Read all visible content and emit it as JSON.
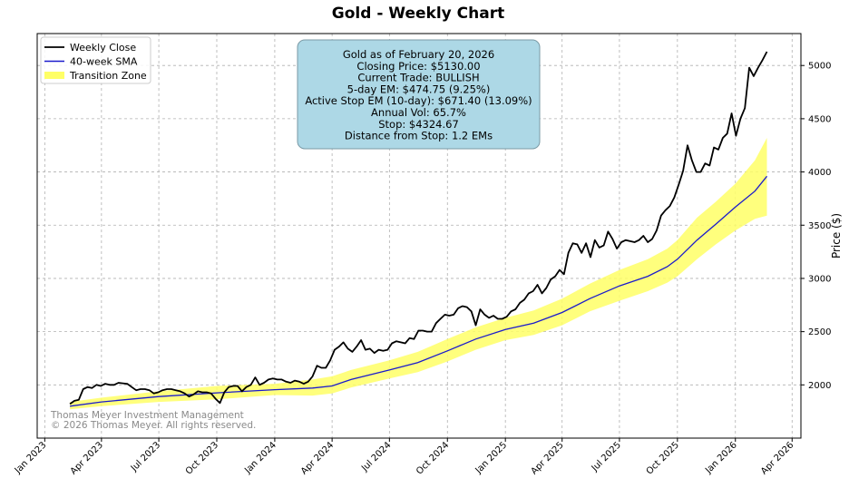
{
  "chart_data": {
    "type": "line",
    "title": "Gold - Weekly Chart",
    "ylabel": "Price ($)",
    "xlabel": "",
    "ylim": [
      1500,
      5300
    ],
    "yticks": [
      2000,
      2500,
      3000,
      3500,
      4000,
      4500,
      5000
    ],
    "xlim": [
      "2022-12-20",
      "2026-04-15"
    ],
    "xticks": [
      {
        "date": "2023-01-01",
        "label": "Jan 2023"
      },
      {
        "date": "2023-04-01",
        "label": "Apr 2023"
      },
      {
        "date": "2023-07-01",
        "label": "Jul 2023"
      },
      {
        "date": "2023-10-01",
        "label": "Oct 2023"
      },
      {
        "date": "2024-01-01",
        "label": "Jan 2024"
      },
      {
        "date": "2024-04-01",
        "label": "Apr 2024"
      },
      {
        "date": "2024-07-01",
        "label": "Jul 2024"
      },
      {
        "date": "2024-10-01",
        "label": "Oct 2024"
      },
      {
        "date": "2025-01-01",
        "label": "Jan 2025"
      },
      {
        "date": "2025-04-01",
        "label": "Apr 2025"
      },
      {
        "date": "2025-07-01",
        "label": "Jul 2025"
      },
      {
        "date": "2025-10-01",
        "label": "Oct 2025"
      },
      {
        "date": "2026-01-01",
        "label": "Jan 2026"
      },
      {
        "date": "2026-04-01",
        "label": "Apr 2026"
      }
    ],
    "grid": true,
    "legend": {
      "position": "top-left",
      "entries": [
        {
          "name": "Weekly Close",
          "color": "#000000",
          "kind": "line"
        },
        {
          "name": "40-week SMA",
          "color": "#1a1acc",
          "kind": "line"
        },
        {
          "name": "Transition Zone",
          "color": "#ffff66",
          "kind": "patch"
        }
      ]
    },
    "series": [
      {
        "name": "Weekly Close",
        "color": "#000000",
        "points": [
          [
            "2023-02-10",
            1820
          ],
          [
            "2023-02-17",
            1850
          ],
          [
            "2023-02-24",
            1860
          ],
          [
            "2023-03-03",
            1960
          ],
          [
            "2023-03-10",
            1980
          ],
          [
            "2023-03-17",
            1970
          ],
          [
            "2023-03-24",
            2000
          ],
          [
            "2023-03-31",
            1990
          ],
          [
            "2023-04-07",
            2010
          ],
          [
            "2023-04-14",
            2000
          ],
          [
            "2023-04-21",
            2000
          ],
          [
            "2023-04-28",
            2020
          ],
          [
            "2023-05-05",
            2015
          ],
          [
            "2023-05-12",
            2010
          ],
          [
            "2023-05-19",
            1980
          ],
          [
            "2023-05-26",
            1950
          ],
          [
            "2023-06-02",
            1960
          ],
          [
            "2023-06-09",
            1960
          ],
          [
            "2023-06-16",
            1950
          ],
          [
            "2023-06-23",
            1920
          ],
          [
            "2023-06-30",
            1930
          ],
          [
            "2023-07-07",
            1950
          ],
          [
            "2023-07-14",
            1960
          ],
          [
            "2023-07-21",
            1960
          ],
          [
            "2023-07-28",
            1950
          ],
          [
            "2023-08-04",
            1940
          ],
          [
            "2023-08-11",
            1920
          ],
          [
            "2023-08-18",
            1890
          ],
          [
            "2023-08-25",
            1910
          ],
          [
            "2023-09-01",
            1940
          ],
          [
            "2023-09-08",
            1930
          ],
          [
            "2023-09-15",
            1930
          ],
          [
            "2023-09-22",
            1920
          ],
          [
            "2023-09-29",
            1870
          ],
          [
            "2023-10-06",
            1830
          ],
          [
            "2023-10-13",
            1930
          ],
          [
            "2023-10-20",
            1980
          ],
          [
            "2023-10-27",
            1990
          ],
          [
            "2023-11-03",
            1990
          ],
          [
            "2023-11-10",
            1940
          ],
          [
            "2023-11-17",
            1980
          ],
          [
            "2023-11-24",
            2000
          ],
          [
            "2023-12-01",
            2070
          ],
          [
            "2023-12-08",
            2000
          ],
          [
            "2023-12-15",
            2020
          ],
          [
            "2023-12-22",
            2050
          ],
          [
            "2023-12-29",
            2060
          ],
          [
            "2024-01-05",
            2050
          ],
          [
            "2024-01-12",
            2050
          ],
          [
            "2024-01-19",
            2030
          ],
          [
            "2024-01-26",
            2020
          ],
          [
            "2024-02-02",
            2040
          ],
          [
            "2024-02-09",
            2030
          ],
          [
            "2024-02-16",
            2010
          ],
          [
            "2024-02-23",
            2030
          ],
          [
            "2024-03-01",
            2080
          ],
          [
            "2024-03-08",
            2180
          ],
          [
            "2024-03-15",
            2160
          ],
          [
            "2024-03-22",
            2160
          ],
          [
            "2024-03-29",
            2230
          ],
          [
            "2024-04-05",
            2330
          ],
          [
            "2024-04-12",
            2360
          ],
          [
            "2024-04-19",
            2400
          ],
          [
            "2024-04-26",
            2340
          ],
          [
            "2024-05-03",
            2310
          ],
          [
            "2024-05-10",
            2360
          ],
          [
            "2024-05-17",
            2420
          ],
          [
            "2024-05-24",
            2330
          ],
          [
            "2024-05-31",
            2340
          ],
          [
            "2024-06-07",
            2300
          ],
          [
            "2024-06-14",
            2330
          ],
          [
            "2024-06-21",
            2320
          ],
          [
            "2024-06-28",
            2330
          ],
          [
            "2024-07-05",
            2390
          ],
          [
            "2024-07-12",
            2410
          ],
          [
            "2024-07-19",
            2400
          ],
          [
            "2024-07-26",
            2390
          ],
          [
            "2024-08-02",
            2440
          ],
          [
            "2024-08-09",
            2430
          ],
          [
            "2024-08-16",
            2510
          ],
          [
            "2024-08-23",
            2510
          ],
          [
            "2024-08-30",
            2500
          ],
          [
            "2024-09-06",
            2500
          ],
          [
            "2024-09-13",
            2580
          ],
          [
            "2024-09-20",
            2620
          ],
          [
            "2024-09-27",
            2660
          ],
          [
            "2024-10-04",
            2650
          ],
          [
            "2024-10-11",
            2660
          ],
          [
            "2024-10-18",
            2720
          ],
          [
            "2024-10-25",
            2740
          ],
          [
            "2024-11-01",
            2730
          ],
          [
            "2024-11-08",
            2690
          ],
          [
            "2024-11-15",
            2560
          ],
          [
            "2024-11-22",
            2710
          ],
          [
            "2024-11-29",
            2660
          ],
          [
            "2024-12-06",
            2630
          ],
          [
            "2024-12-13",
            2650
          ],
          [
            "2024-12-20",
            2620
          ],
          [
            "2024-12-27",
            2620
          ],
          [
            "2025-01-03",
            2640
          ],
          [
            "2025-01-10",
            2690
          ],
          [
            "2025-01-17",
            2710
          ],
          [
            "2025-01-24",
            2770
          ],
          [
            "2025-01-31",
            2800
          ],
          [
            "2025-02-07",
            2860
          ],
          [
            "2025-02-14",
            2880
          ],
          [
            "2025-02-21",
            2940
          ],
          [
            "2025-02-28",
            2860
          ],
          [
            "2025-03-07",
            2910
          ],
          [
            "2025-03-14",
            2990
          ],
          [
            "2025-03-21",
            3020
          ],
          [
            "2025-03-28",
            3080
          ],
          [
            "2025-04-04",
            3040
          ],
          [
            "2025-04-11",
            3240
          ],
          [
            "2025-04-18",
            3330
          ],
          [
            "2025-04-25",
            3320
          ],
          [
            "2025-05-02",
            3240
          ],
          [
            "2025-05-09",
            3330
          ],
          [
            "2025-05-16",
            3200
          ],
          [
            "2025-05-23",
            3360
          ],
          [
            "2025-05-30",
            3290
          ],
          [
            "2025-06-06",
            3310
          ],
          [
            "2025-06-13",
            3440
          ],
          [
            "2025-06-20",
            3370
          ],
          [
            "2025-06-27",
            3280
          ],
          [
            "2025-07-04",
            3340
          ],
          [
            "2025-07-11",
            3360
          ],
          [
            "2025-07-18",
            3350
          ],
          [
            "2025-07-25",
            3340
          ],
          [
            "2025-08-01",
            3360
          ],
          [
            "2025-08-08",
            3400
          ],
          [
            "2025-08-15",
            3340
          ],
          [
            "2025-08-22",
            3370
          ],
          [
            "2025-08-29",
            3450
          ],
          [
            "2025-09-05",
            3590
          ],
          [
            "2025-09-12",
            3640
          ],
          [
            "2025-09-19",
            3680
          ],
          [
            "2025-09-26",
            3760
          ],
          [
            "2025-10-03",
            3880
          ],
          [
            "2025-10-10",
            4010
          ],
          [
            "2025-10-17",
            4250
          ],
          [
            "2025-10-24",
            4110
          ],
          [
            "2025-10-31",
            4000
          ],
          [
            "2025-11-07",
            4000
          ],
          [
            "2025-11-14",
            4080
          ],
          [
            "2025-11-21",
            4060
          ],
          [
            "2025-11-28",
            4230
          ],
          [
            "2025-12-05",
            4210
          ],
          [
            "2025-12-12",
            4320
          ],
          [
            "2025-12-19",
            4360
          ],
          [
            "2025-12-26",
            4550
          ],
          [
            "2026-01-02",
            4340
          ],
          [
            "2026-01-09",
            4500
          ],
          [
            "2026-01-16",
            4600
          ],
          [
            "2026-01-23",
            4980
          ],
          [
            "2026-01-30",
            4900
          ],
          [
            "2026-02-06",
            4980
          ],
          [
            "2026-02-13",
            5050
          ],
          [
            "2026-02-20",
            5130
          ]
        ]
      },
      {
        "name": "40-week SMA",
        "color": "#1a1acc",
        "points": [
          [
            "2023-02-10",
            1800
          ],
          [
            "2023-04-01",
            1840
          ],
          [
            "2023-07-01",
            1890
          ],
          [
            "2023-10-01",
            1925
          ],
          [
            "2024-01-01",
            1955
          ],
          [
            "2024-03-01",
            1970
          ],
          [
            "2024-04-01",
            1990
          ],
          [
            "2024-05-01",
            2050
          ],
          [
            "2024-07-01",
            2140
          ],
          [
            "2024-08-15",
            2210
          ],
          [
            "2024-10-01",
            2320
          ],
          [
            "2024-11-15",
            2430
          ],
          [
            "2025-01-01",
            2520
          ],
          [
            "2025-02-15",
            2580
          ],
          [
            "2025-04-01",
            2680
          ],
          [
            "2025-05-15",
            2810
          ],
          [
            "2025-07-01",
            2930
          ],
          [
            "2025-08-15",
            3020
          ],
          [
            "2025-09-15",
            3110
          ],
          [
            "2025-10-01",
            3180
          ],
          [
            "2025-11-01",
            3360
          ],
          [
            "2025-12-01",
            3510
          ],
          [
            "2026-01-01",
            3670
          ],
          [
            "2026-02-01",
            3820
          ],
          [
            "2026-02-20",
            3960
          ]
        ]
      }
    ],
    "band": {
      "name": "Transition Zone",
      "color": "#ffff66",
      "points": [
        [
          "2023-02-10",
          1770,
          1840
        ],
        [
          "2023-04-01",
          1800,
          1880
        ],
        [
          "2023-07-01",
          1840,
          1940
        ],
        [
          "2023-10-01",
          1865,
          1990
        ],
        [
          "2024-01-01",
          1905,
          2010
        ],
        [
          "2024-03-01",
          1900,
          2050
        ],
        [
          "2024-04-01",
          1920,
          2080
        ],
        [
          "2024-05-01",
          1975,
          2140
        ],
        [
          "2024-07-01",
          2060,
          2230
        ],
        [
          "2024-08-15",
          2120,
          2310
        ],
        [
          "2024-10-01",
          2220,
          2430
        ],
        [
          "2024-11-15",
          2330,
          2540
        ],
        [
          "2025-01-01",
          2420,
          2630
        ],
        [
          "2025-02-15",
          2470,
          2700
        ],
        [
          "2025-04-01",
          2560,
          2810
        ],
        [
          "2025-05-15",
          2690,
          2950
        ],
        [
          "2025-07-01",
          2790,
          3080
        ],
        [
          "2025-08-15",
          2880,
          3180
        ],
        [
          "2025-09-15",
          2960,
          3280
        ],
        [
          "2025-10-01",
          3020,
          3360
        ],
        [
          "2025-11-01",
          3180,
          3570
        ],
        [
          "2025-12-01",
          3320,
          3720
        ],
        [
          "2026-01-01",
          3450,
          3890
        ],
        [
          "2026-02-01",
          3560,
          4110
        ],
        [
          "2026-02-20",
          3590,
          4320
        ]
      ]
    },
    "info_box": [
      "Gold as of February 20, 2026",
      "Closing Price: $5130.00",
      "Current Trade: BULLISH",
      "5-day EM: $474.75 (9.25%)",
      "Active Stop EM (10-day): $671.40 (13.09%)",
      "Annual Vol: 65.7%",
      "Stop: $4324.67",
      "Distance from Stop: 1.2 EMs"
    ],
    "watermark": [
      "Thomas Meyer Investment Management",
      "© 2026 Thomas Meyer. All rights reserved."
    ]
  },
  "colors": {
    "background": "#ffffff",
    "grid": "#b0b0b0",
    "info_box_fill": "#add8e6",
    "info_box_stroke": "#7a9aa6"
  }
}
